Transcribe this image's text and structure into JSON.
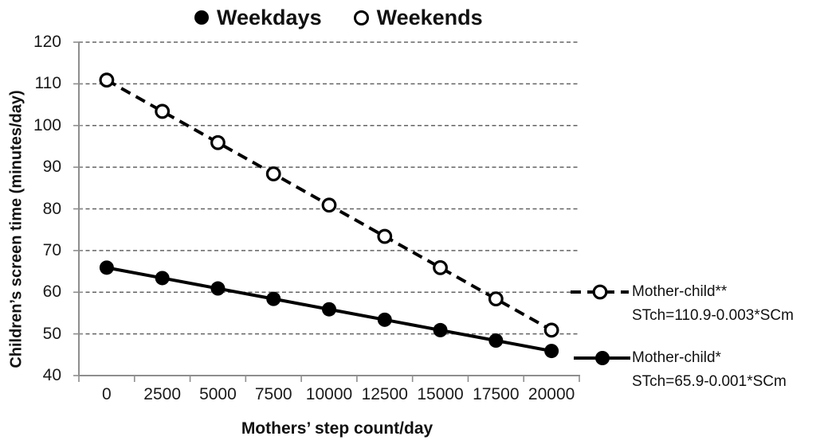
{
  "legend": {
    "items": [
      {
        "label": "Weekdays",
        "marker": "filled-circle"
      },
      {
        "label": "Weekends",
        "marker": "open-circle"
      }
    ]
  },
  "chart_data": {
    "type": "line",
    "title": "",
    "xlabel": "Mothers’ step count/day",
    "ylabel": "Children’s screen time (minutes/day)",
    "categories": [
      0,
      2500,
      5000,
      7500,
      10000,
      12500,
      15000,
      17500,
      20000
    ],
    "series": [
      {
        "name": "Weekends",
        "line": "dashed",
        "marker": "open-circle",
        "values": [
          110.9,
          103.4,
          95.9,
          88.4,
          80.9,
          73.4,
          65.9,
          58.4,
          50.9
        ],
        "equation": "STch=110.9-0.003*SCm"
      },
      {
        "name": "Weekdays",
        "line": "solid",
        "marker": "filled-circle",
        "values": [
          65.9,
          63.4,
          60.9,
          58.4,
          55.9,
          53.4,
          50.9,
          48.4,
          45.9
        ],
        "equation": "STch=65.9-0.001*SCm"
      }
    ],
    "ylim": [
      40,
      120
    ],
    "yticks": [
      40,
      50,
      60,
      70,
      80,
      90,
      100,
      110,
      120
    ],
    "grid": "horizontal-dashed",
    "legend_position": "top"
  },
  "annotations": [
    {
      "line1": "Mother-child**",
      "line2": "STch=110.9-0.003*SCm",
      "key": "dashed-open-circle"
    },
    {
      "line1": "Mother-child*",
      "line2": "STch=65.9-0.001*SCm",
      "key": "solid-filled-circle"
    }
  ],
  "colors": {
    "series": "#000000",
    "marker_fill": "#000000",
    "marker_open_fill": "#ffffff",
    "axis": "#8e8e8e",
    "gridline": "#636363",
    "text": "#111111",
    "background": "#ffffff"
  }
}
